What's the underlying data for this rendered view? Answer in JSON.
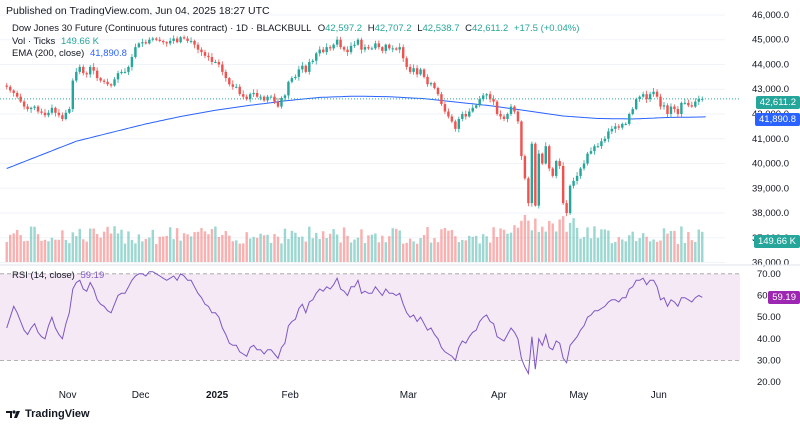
{
  "header": {
    "published": "Published on TradingView.com, Jun 04, 2025 18:27 UTC"
  },
  "legend": {
    "symbol": "Dow Jones 30 Future (Continuous futures contract) · 1D · BLACKBULL",
    "o_label": "O",
    "o_val": "42,597.2",
    "h_label": "H",
    "h_val": "42,707.2",
    "l_label": "L",
    "l_val": "42,538.7",
    "c_label": "C",
    "c_val": "42,611.2",
    "change": "+17.5 (+0.04%)",
    "vol_label": "Vol · Ticks",
    "vol_val": "149.66 K",
    "ema_label": "EMA (200, close)",
    "ema_val": "41,890.8",
    "rsi_label": "RSI (14, close)",
    "rsi_val": "59.19"
  },
  "badges": {
    "price": "42,611.2",
    "ema": "41,890.8",
    "volume": "149.66 K",
    "rsi": "59.19"
  },
  "price_axis": [
    "46,000.0",
    "45,000.0",
    "44,000.0",
    "43,000.0",
    "42,000.0",
    "41,000.0",
    "40,000.0",
    "39,000.0",
    "38,000.0",
    "37,000.0",
    "36,000.0"
  ],
  "rsi_axis": [
    "70.00",
    "60.00",
    "50.00",
    "40.00",
    "30.00",
    "20.00"
  ],
  "time_axis": [
    "Nov",
    "Dec",
    "2025",
    "Feb",
    "Mar",
    "Apr",
    "May",
    "Jun"
  ],
  "logo_text": "TradingView",
  "colors": {
    "up": "#26a69a",
    "down": "#ef5350",
    "ema": "#2962ff",
    "rsi": "#7e57c2",
    "rsi_band": "#f3e5f5"
  },
  "chart_data": {
    "type": "candlestick",
    "title": "Dow Jones 30 Future (Continuous futures contract)",
    "timeframe": "1D",
    "ylim": [
      35700,
      46200
    ],
    "rsi_ylim": [
      15,
      75
    ],
    "close": [
      43100,
      42950,
      42850,
      42700,
      42500,
      42300,
      42200,
      42250,
      42300,
      42100,
      42050,
      41950,
      42050,
      42250,
      42050,
      41950,
      41800,
      42050,
      42200,
      43350,
      43700,
      43900,
      43650,
      43600,
      43900,
      43750,
      43450,
      43350,
      43300,
      43200,
      43150,
      43400,
      43650,
      43700,
      43700,
      43900,
      44300,
      44700,
      44850,
      44900,
      44850,
      45000,
      45050,
      45000,
      44950,
      44900,
      44850,
      44950,
      45050,
      44900,
      45100,
      45050,
      44950,
      44950,
      44800,
      44600,
      44500,
      44350,
      44300,
      44100,
      44100,
      44000,
      43700,
      43450,
      43200,
      43100,
      43100,
      42800,
      42700,
      42600,
      42800,
      42850,
      42700,
      42700,
      42550,
      42700,
      42700,
      42500,
      42300,
      42650,
      42750,
      43300,
      43450,
      43500,
      43800,
      43950,
      43700,
      44100,
      44150,
      44450,
      44600,
      44500,
      44700,
      44650,
      44800,
      45000,
      44700,
      44600,
      44500,
      44750,
      44800,
      45000,
      44600,
      44700,
      44650,
      44650,
      44850,
      44700,
      44550,
      44800,
      44650,
      44650,
      44600,
      44700,
      44250,
      43900,
      43700,
      43850,
      43600,
      43800,
      43500,
      43200,
      43250,
      43050,
      42800,
      42400,
      42100,
      41900,
      41700,
      41400,
      41800,
      42000,
      41900,
      42100,
      42250,
      42350,
      42600,
      42750,
      42800,
      42600,
      42500,
      42000,
      41900,
      41800,
      42000,
      42300,
      42100,
      41700,
      40300,
      39400,
      38400,
      40800,
      38300,
      40400,
      40000,
      40700,
      39800,
      39500,
      40100,
      39900,
      38400,
      38000,
      39100,
      39300,
      39500,
      39800,
      40000,
      40400,
      40500,
      40700,
      40700,
      40900,
      41000,
      41300,
      41400,
      41500,
      41450,
      41600,
      41600,
      42000,
      42200,
      42600,
      42700,
      42800,
      42600,
      42800,
      42900,
      42700,
      42300,
      42350,
      42000,
      42300,
      42200,
      42000,
      42450,
      42450,
      42350,
      42300,
      42500,
      42600,
      42611
    ],
    "ema": [
      39800,
      39855,
      39910,
      39965,
      40020,
      40075,
      40130,
      40185,
      40240,
      40295,
      40350,
      40405,
      40460,
      40515,
      40570,
      40625,
      40680,
      40735,
      40790,
      40845,
      40900,
      40935,
      40970,
      41005,
      41040,
      41075,
      41110,
      41145,
      41180,
      41215,
      41250,
      41285,
      41320,
      41355,
      41390,
      41425,
      41460,
      41495,
      41530,
      41565,
      41600,
      41630,
      41660,
      41690,
      41720,
      41750,
      41780,
      41810,
      41840,
      41870,
      41900,
      41925,
      41950,
      41975,
      42000,
      42025,
      42050,
      42075,
      42100,
      42125,
      42150,
      42170,
      42190,
      42210,
      42230,
      42250,
      42270,
      42290,
      42310,
      42330,
      42350,
      42368,
      42386,
      42404,
      42422,
      42440,
      42458,
      42476,
      42494,
      42512,
      42530,
      42544,
      42558,
      42572,
      42586,
      42600,
      42614,
      42628,
      42642,
      42656,
      42670,
      42675,
      42680,
      42685,
      42690,
      42695,
      42700,
      42705,
      42710,
      42715,
      42720,
      42718,
      42716,
      42714,
      42712,
      42710,
      42708,
      42706,
      42704,
      42702,
      42700,
      42692,
      42684,
      42676,
      42668,
      42660,
      42652,
      42644,
      42636,
      42628,
      42620,
      42605,
      42590,
      42575,
      42560,
      42545,
      42530,
      42515,
      42500,
      42485,
      42470,
      42455,
      42440,
      42425,
      42410,
      42395,
      42380,
      42365,
      42350,
      42335,
      42320,
      42300,
      42280,
      42260,
      42240,
      42220,
      42200,
      42180,
      42160,
      42140,
      42120,
      42100,
      42080,
      42060,
      42040,
      42020,
      42000,
      41980,
      41960,
      41940,
      41920,
      41910,
      41900,
      41890,
      41880,
      41870,
      41860,
      41850,
      41840,
      41830,
      41820,
      41818,
      41816,
      41814,
      41812,
      41810,
      41808,
      41806,
      41804,
      41802,
      41800,
      41806,
      41812,
      41818,
      41824,
      41830,
      41836,
      41842,
      41848,
      41854,
      41860,
      41862,
      41864,
      41866,
      41868,
      41870,
      41872,
      41874,
      41876,
      41878,
      41880,
      41890.8
    ],
    "rsi": [
      45,
      50,
      55,
      52,
      48,
      44,
      42,
      45,
      47,
      43,
      41,
      40,
      46,
      50,
      45,
      42,
      40,
      47,
      52,
      63,
      66,
      67,
      63,
      62,
      66,
      63,
      58,
      56,
      55,
      53,
      52,
      56,
      60,
      61,
      61,
      64,
      67,
      69,
      70,
      70,
      69,
      71,
      71,
      70,
      69,
      68,
      67,
      68,
      69,
      67,
      70,
      69,
      67,
      67,
      64,
      61,
      59,
      56,
      55,
      52,
      52,
      50,
      45,
      42,
      38,
      37,
      37,
      34,
      33,
      32,
      36,
      37,
      35,
      35,
      33,
      35,
      35,
      33,
      31,
      36,
      38,
      46,
      48,
      49,
      54,
      56,
      52,
      57,
      58,
      61,
      63,
      62,
      64,
      63,
      65,
      68,
      63,
      62,
      60,
      64,
      64,
      67,
      61,
      62,
      61,
      61,
      64,
      62,
      60,
      63,
      61,
      61,
      60,
      61,
      56,
      52,
      50,
      51,
      48,
      50,
      47,
      44,
      45,
      42,
      40,
      36,
      34,
      33,
      32,
      30,
      36,
      39,
      38,
      41,
      43,
      44,
      48,
      50,
      51,
      48,
      47,
      41,
      40,
      39,
      42,
      45,
      43,
      40,
      31,
      27,
      24,
      41,
      26,
      40,
      37,
      42,
      36,
      35,
      39,
      38,
      31,
      29,
      37,
      39,
      41,
      44,
      46,
      50,
      51,
      53,
      53,
      54,
      55,
      57,
      58,
      58,
      57,
      59,
      59,
      63,
      64,
      67,
      67,
      68,
      65,
      67,
      67,
      64,
      58,
      59,
      55,
      58,
      57,
      55,
      59,
      59,
      58,
      57,
      59,
      60,
      59.19
    ],
    "volume_note": "Volume in ticks; last value 149.66 K"
  }
}
